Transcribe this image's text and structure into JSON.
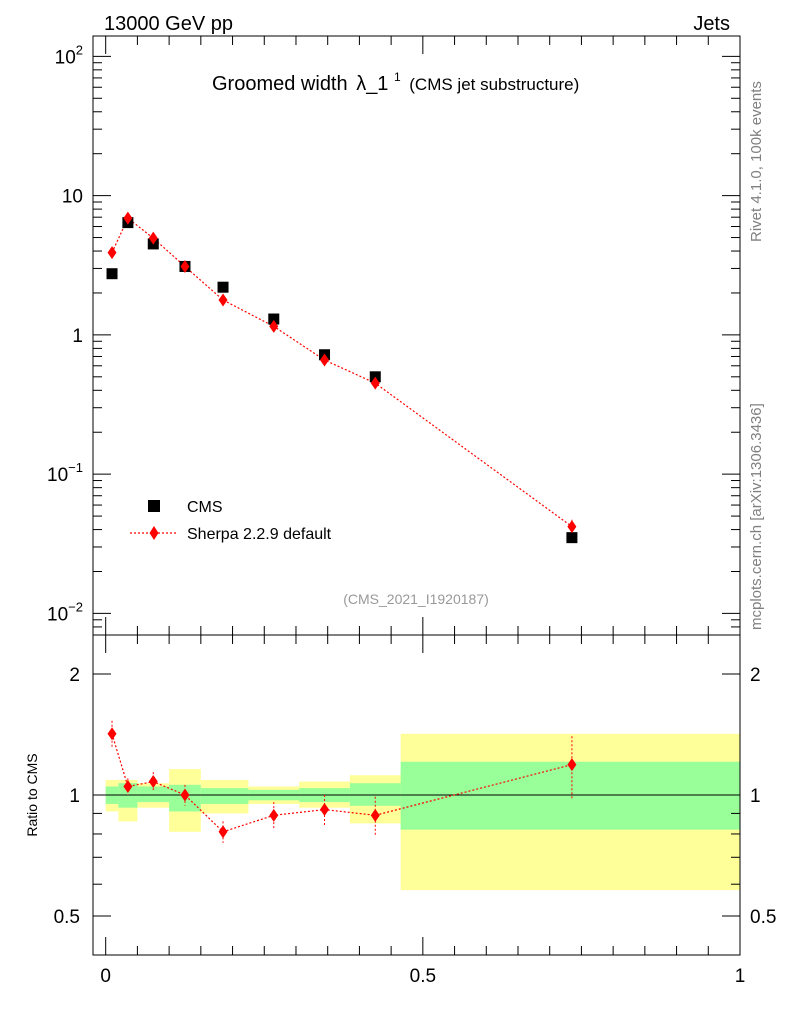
{
  "header": {
    "energy_label": "13000 GeV pp",
    "process_label": "Jets"
  },
  "side_labels": {
    "rivet": "Rivet 4.1.0,  100k events",
    "mcplots": "mcplots.cern.ch [arXiv:1306.3436]"
  },
  "chart_data": [
    {
      "type": "scatter",
      "panel": "main",
      "title": "Groomed width",
      "title_symbol": "λ_1",
      "title_superscript": "1",
      "subtitle": "(CMS jet substructure)",
      "analysis_label": "(CMS_2021_I1920187)",
      "yscale": "log",
      "ylim": [
        0.007,
        140
      ],
      "xlim": [
        -0.02,
        1.0
      ],
      "y_ticks": [
        {
          "value": 100,
          "base": "10",
          "exp": "2"
        },
        {
          "value": 10,
          "base": "10",
          "exp": ""
        },
        {
          "value": 1,
          "base": "1",
          "exp": ""
        },
        {
          "value": 0.1,
          "base": "10",
          "exp": "−1"
        },
        {
          "value": 0.01,
          "base": "10",
          "exp": "−2"
        }
      ],
      "legend": {
        "position": "bottom-left",
        "entries": [
          {
            "label": "CMS",
            "marker": "square",
            "color": "#000000"
          },
          {
            "label": "Sherpa 2.2.9 default",
            "marker": "diamond",
            "color": "#ff0000"
          }
        ]
      },
      "series": [
        {
          "name": "CMS",
          "color": "#000000",
          "x": [
            0.01,
            0.035,
            0.075,
            0.125,
            0.185,
            0.265,
            0.345,
            0.425,
            0.735
          ],
          "y": [
            2.75,
            6.4,
            4.5,
            3.1,
            2.2,
            1.3,
            0.72,
            0.5,
            0.035
          ]
        },
        {
          "name": "Sherpa 2.2.9 default",
          "color": "#ff0000",
          "x": [
            0.01,
            0.035,
            0.075,
            0.125,
            0.185,
            0.265,
            0.345,
            0.425,
            0.735
          ],
          "y": [
            3.9,
            6.9,
            4.95,
            3.1,
            1.78,
            1.15,
            0.66,
            0.45,
            0.042
          ],
          "yerr": [
            0.08,
            0.06,
            0.06,
            0.05,
            0.06,
            0.07,
            0.08,
            0.09,
            0.12
          ]
        }
      ]
    },
    {
      "type": "scatter",
      "panel": "ratio",
      "ylabel": "Ratio to CMS",
      "xlabel": "",
      "yscale": "log",
      "ylim": [
        0.4,
        2.5
      ],
      "xlim": [
        -0.02,
        1.0
      ],
      "y_ticks": [
        0.5,
        1,
        2
      ],
      "y_tick_labels": [
        "0.5",
        "1",
        "2"
      ],
      "x_ticks": [
        0,
        0.5,
        1
      ],
      "x_tick_labels": [
        "0",
        "0.5",
        "1"
      ],
      "reference_line": 1,
      "bands": [
        {
          "xlo": 0.0,
          "xhi": 0.02,
          "inner": [
            0.95,
            1.05
          ],
          "outer": [
            0.91,
            1.09
          ]
        },
        {
          "xlo": 0.02,
          "xhi": 0.05,
          "inner": [
            0.93,
            1.07
          ],
          "outer": [
            0.86,
            1.09
          ]
        },
        {
          "xlo": 0.05,
          "xhi": 0.1,
          "inner": [
            0.96,
            1.05
          ],
          "outer": [
            0.93,
            1.07
          ]
        },
        {
          "xlo": 0.1,
          "xhi": 0.15,
          "inner": [
            0.91,
            1.06
          ],
          "outer": [
            0.81,
            1.16
          ]
        },
        {
          "xlo": 0.15,
          "xhi": 0.225,
          "inner": [
            0.95,
            1.04
          ],
          "outer": [
            0.9,
            1.09
          ]
        },
        {
          "xlo": 0.225,
          "xhi": 0.305,
          "inner": [
            0.97,
            1.03
          ],
          "outer": [
            0.95,
            1.05
          ]
        },
        {
          "xlo": 0.305,
          "xhi": 0.385,
          "inner": [
            0.96,
            1.04
          ],
          "outer": [
            0.93,
            1.08
          ]
        },
        {
          "xlo": 0.385,
          "xhi": 0.465,
          "inner": [
            0.94,
            1.07
          ],
          "outer": [
            0.85,
            1.12
          ]
        },
        {
          "xlo": 0.465,
          "xhi": 1.0,
          "inner": [
            0.82,
            1.21
          ],
          "outer": [
            0.58,
            1.42
          ]
        }
      ],
      "band_colors": {
        "inner": "#99ff99",
        "outer": "#ffff99"
      },
      "series": [
        {
          "name": "Sherpa 2.2.9 default",
          "color": "#ff0000",
          "x": [
            0.01,
            0.035,
            0.075,
            0.125,
            0.185,
            0.265,
            0.345,
            0.425,
            0.735
          ],
          "y": [
            1.42,
            1.05,
            1.08,
            1.0,
            0.81,
            0.89,
            0.92,
            0.89,
            1.19
          ],
          "yerr": [
            0.11,
            0.05,
            0.06,
            0.06,
            0.05,
            0.07,
            0.08,
            0.1,
            0.21
          ]
        }
      ]
    }
  ]
}
